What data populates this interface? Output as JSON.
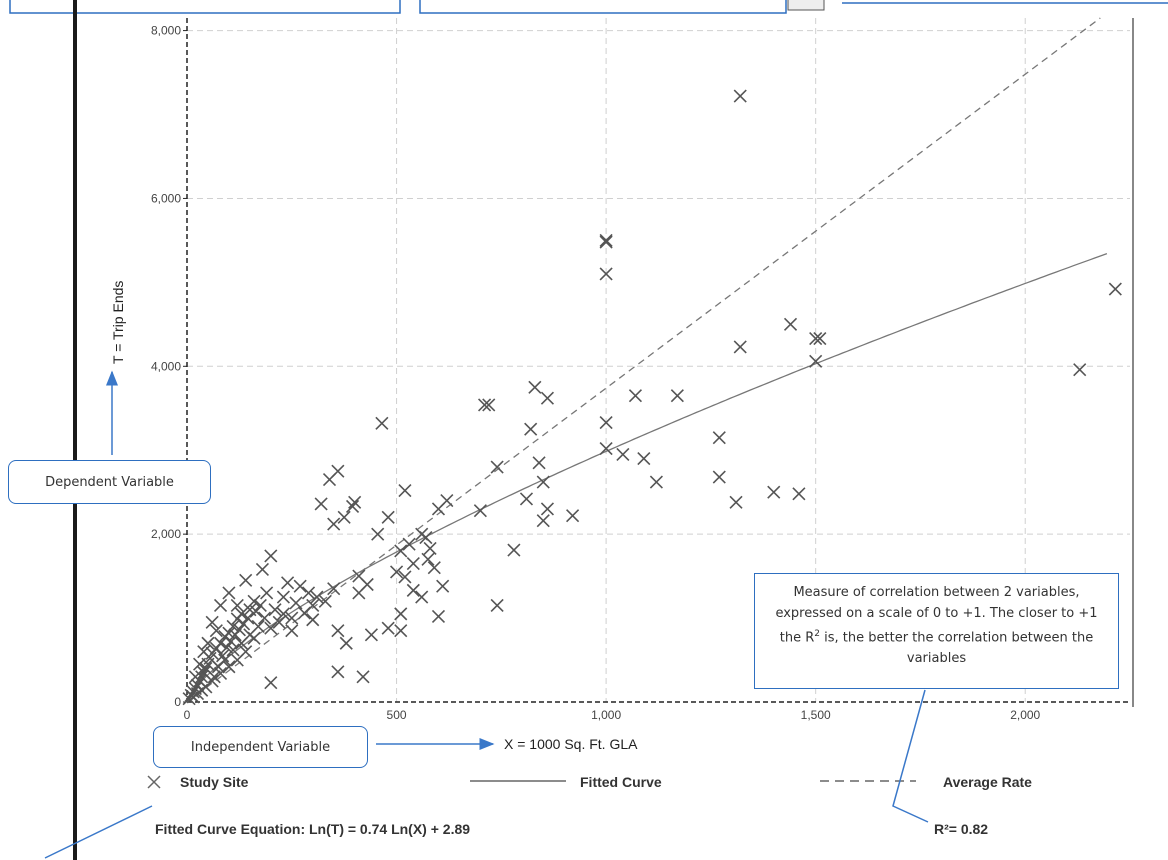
{
  "chart_data": {
    "type": "scatter",
    "title": "",
    "xlabel": "X = 1000 Sq. Ft. GLA",
    "ylabel": "T = Trip Ends",
    "xlim": [
      0,
      2250
    ],
    "ylim": [
      0,
      8150
    ],
    "x_ticks": [
      0,
      500,
      1000,
      1500,
      2000
    ],
    "x_tick_labels": [
      "0",
      "500",
      "1,000",
      "1,500",
      "2,000"
    ],
    "y_ticks": [
      0,
      2000,
      4000,
      6000,
      8000
    ],
    "y_tick_labels": [
      "0",
      "2,000",
      "4,000",
      "6,000",
      "8,000"
    ],
    "grid": true,
    "legend_position": "bottom",
    "series": [
      {
        "name": "Study Site",
        "kind": "points",
        "points": [
          [
            1320,
            7220
          ],
          [
            1000,
            5500
          ],
          [
            1000,
            5480
          ],
          [
            1000,
            5100
          ],
          [
            2215,
            4920
          ],
          [
            1440,
            4500
          ],
          [
            1500,
            4330
          ],
          [
            1510,
            4330
          ],
          [
            1500,
            4060
          ],
          [
            1320,
            4230
          ],
          [
            2130,
            3960
          ],
          [
            830,
            3750
          ],
          [
            860,
            3620
          ],
          [
            1070,
            3650
          ],
          [
            1170,
            3650
          ],
          [
            1000,
            3330
          ],
          [
            710,
            3540
          ],
          [
            720,
            3540
          ],
          [
            465,
            3320
          ],
          [
            820,
            3250
          ],
          [
            1270,
            3150
          ],
          [
            1000,
            3020
          ],
          [
            1040,
            2950
          ],
          [
            1090,
            2900
          ],
          [
            840,
            2850
          ],
          [
            740,
            2800
          ],
          [
            1120,
            2620
          ],
          [
            1270,
            2680
          ],
          [
            850,
            2620
          ],
          [
            1310,
            2380
          ],
          [
            1400,
            2500
          ],
          [
            1460,
            2480
          ],
          [
            360,
            2750
          ],
          [
            340,
            2650
          ],
          [
            810,
            2420
          ],
          [
            860,
            2300
          ],
          [
            850,
            2160
          ],
          [
            920,
            2220
          ],
          [
            520,
            2520
          ],
          [
            620,
            2400
          ],
          [
            600,
            2300
          ],
          [
            700,
            2280
          ],
          [
            400,
            2380
          ],
          [
            395,
            2330
          ],
          [
            320,
            2360
          ],
          [
            375,
            2200
          ],
          [
            350,
            2120
          ],
          [
            480,
            2200
          ],
          [
            455,
            2000
          ],
          [
            560,
            2000
          ],
          [
            530,
            1880
          ],
          [
            510,
            1800
          ],
          [
            570,
            1960
          ],
          [
            580,
            1830
          ],
          [
            590,
            1600
          ],
          [
            780,
            1810
          ],
          [
            200,
            1740
          ],
          [
            540,
            1650
          ],
          [
            500,
            1550
          ],
          [
            575,
            1700
          ],
          [
            610,
            1380
          ],
          [
            540,
            1330
          ],
          [
            520,
            1490
          ],
          [
            560,
            1250
          ],
          [
            600,
            1020
          ],
          [
            740,
            1150
          ],
          [
            510,
            1050
          ],
          [
            480,
            880
          ],
          [
            440,
            800
          ],
          [
            510,
            850
          ],
          [
            360,
            850
          ],
          [
            380,
            700
          ],
          [
            360,
            360
          ],
          [
            420,
            300
          ],
          [
            200,
            230
          ],
          [
            410,
            1500
          ],
          [
            430,
            1400
          ],
          [
            410,
            1300
          ],
          [
            350,
            1350
          ],
          [
            330,
            1200
          ],
          [
            300,
            1150
          ],
          [
            280,
            1060
          ],
          [
            250,
            1000
          ],
          [
            220,
            950
          ],
          [
            200,
            880
          ],
          [
            160,
            1200
          ],
          [
            150,
            1100
          ],
          [
            130,
            1050
          ],
          [
            120,
            990
          ],
          [
            110,
            900
          ],
          [
            100,
            820
          ],
          [
            90,
            780
          ],
          [
            80,
            700
          ],
          [
            70,
            640
          ],
          [
            60,
            580
          ],
          [
            55,
            520
          ],
          [
            50,
            450
          ],
          [
            45,
            400
          ],
          [
            40,
            350
          ],
          [
            35,
            300
          ],
          [
            30,
            250
          ],
          [
            25,
            200
          ],
          [
            20,
            160
          ],
          [
            15,
            120
          ],
          [
            10,
            80
          ],
          [
            65,
            300
          ],
          [
            75,
            420
          ],
          [
            85,
            550
          ],
          [
            95,
            650
          ],
          [
            105,
            720
          ],
          [
            115,
            800
          ],
          [
            125,
            860
          ],
          [
            135,
            930
          ],
          [
            145,
            1000
          ],
          [
            165,
            1080
          ],
          [
            175,
            1150
          ],
          [
            185,
            1000
          ],
          [
            230,
            1250
          ],
          [
            260,
            1180
          ],
          [
            290,
            1300
          ],
          [
            240,
            1420
          ],
          [
            270,
            1380
          ],
          [
            310,
            1250
          ],
          [
            180,
            1580
          ],
          [
            140,
            1450
          ],
          [
            100,
            1300
          ],
          [
            80,
            1150
          ],
          [
            60,
            950
          ],
          [
            120,
            1150
          ],
          [
            50,
            700
          ],
          [
            40,
            600
          ],
          [
            30,
            450
          ],
          [
            20,
            300
          ],
          [
            70,
            850
          ],
          [
            150,
            800
          ],
          [
            130,
            700
          ],
          [
            110,
            620
          ],
          [
            90,
            500
          ],
          [
            170,
            900
          ],
          [
            210,
            1100
          ],
          [
            190,
            1300
          ],
          [
            230,
            1050
          ],
          [
            300,
            980
          ],
          [
            250,
            850
          ],
          [
            160,
            760
          ],
          [
            140,
            600
          ],
          [
            120,
            500
          ],
          [
            100,
            420
          ],
          [
            80,
            340
          ],
          [
            60,
            250
          ],
          [
            45,
            180
          ],
          [
            35,
            140
          ],
          [
            25,
            100
          ],
          [
            15,
            60
          ],
          [
            5,
            40
          ]
        ]
      },
      {
        "name": "Fitted Curve",
        "kind": "curve",
        "equation_coeffs": {
          "a": 0.74,
          "b": 2.89
        }
      },
      {
        "name": "Average Rate",
        "kind": "line",
        "slope": 3.74
      }
    ],
    "equation_label": "Fitted Curve Equation: Ln(T) = 0.74 Ln(X) + 2.89",
    "r2_label": "R²= 0.82",
    "legend": {
      "study_site": "Study Site",
      "fitted_curve": "Fitted Curve",
      "average_rate": "Average Rate"
    }
  },
  "annotations": {
    "dependent_variable": "Dependent Variable",
    "independent_variable": "Independent Variable",
    "r2_explanation_part1": "Measure of correlation between 2 variables, expressed on a scale of 0 to +1. The closer to +1 the R",
    "r2_explanation_sup": "2",
    "r2_explanation_part2": " is, the better the correlation between the variables"
  },
  "colors": {
    "marker": "#555555",
    "fitted_curve": "#777777",
    "average_rate": "#777777",
    "grid": "#d0d0d0",
    "callout_border": "#2e6fc0",
    "arrow": "#3a78c9"
  }
}
